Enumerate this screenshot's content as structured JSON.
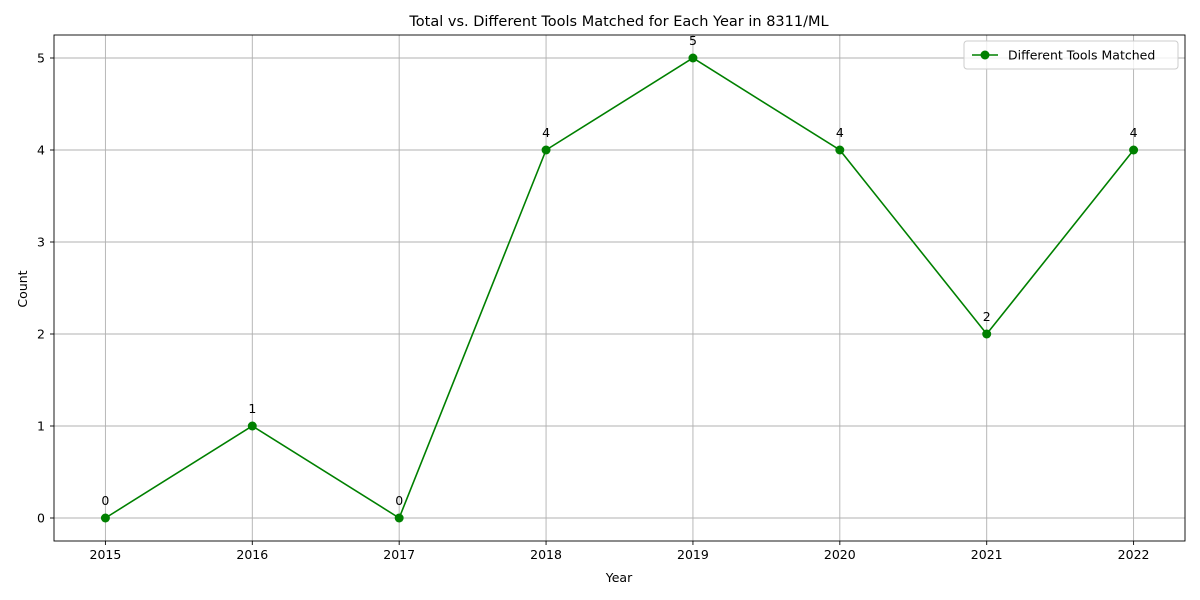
{
  "chart_data": {
    "type": "line",
    "title": "Total vs. Different Tools Matched for Each Year in 8311/ML",
    "xlabel": "Year",
    "ylabel": "Count",
    "x": [
      2015,
      2016,
      2017,
      2018,
      2019,
      2020,
      2021,
      2022
    ],
    "xlim": [
      2014.65,
      2022.35
    ],
    "ylim": [
      -0.25,
      5.25
    ],
    "yticks": [
      0,
      1,
      2,
      3,
      4,
      5
    ],
    "grid": true,
    "legend_position": "top-right",
    "series": [
      {
        "name": "Different Tools Matched",
        "values": [
          0,
          1,
          0,
          4,
          5,
          4,
          2,
          4
        ],
        "data_labels": [
          "0",
          "1",
          "0",
          "4",
          "5",
          "4",
          "2",
          "4"
        ],
        "color": "#008000",
        "marker": "circle"
      }
    ]
  }
}
